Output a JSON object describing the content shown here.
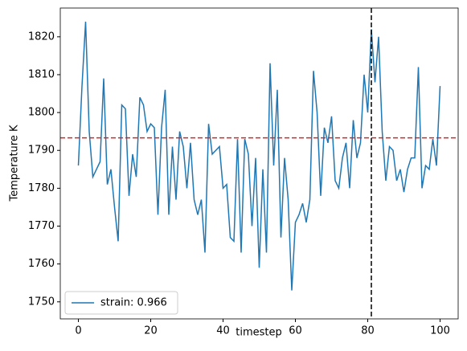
{
  "chart_data": {
    "type": "line",
    "x_label": "timestep",
    "y_label": "Temperature K",
    "x": [
      0,
      1,
      2,
      3,
      4,
      5,
      6,
      7,
      8,
      9,
      10,
      11,
      12,
      13,
      14,
      15,
      16,
      17,
      18,
      19,
      20,
      21,
      22,
      23,
      24,
      25,
      26,
      27,
      28,
      29,
      30,
      31,
      32,
      33,
      34,
      35,
      36,
      37,
      38,
      39,
      40,
      41,
      42,
      43,
      44,
      45,
      46,
      47,
      48,
      49,
      50,
      51,
      52,
      53,
      54,
      55,
      56,
      57,
      58,
      59,
      60,
      61,
      62,
      63,
      64,
      65,
      66,
      67,
      68,
      69,
      70,
      71,
      72,
      73,
      74,
      75,
      76,
      77,
      78,
      79,
      80,
      81,
      82,
      83,
      84,
      85,
      86,
      87,
      88,
      89,
      90,
      91,
      92,
      93,
      94,
      95,
      96,
      97,
      98,
      99,
      100
    ],
    "series": [
      {
        "name": "strain: 0.966",
        "color": "#1f77b4",
        "values": [
          1786,
          1807,
          1824,
          1795,
          1783,
          1785,
          1787,
          1809,
          1781,
          1785,
          1775,
          1766,
          1802,
          1801,
          1778,
          1789,
          1783,
          1804,
          1802,
          1795,
          1797,
          1796,
          1773,
          1796,
          1806,
          1773,
          1791,
          1777,
          1795,
          1791,
          1780,
          1792,
          1777,
          1773,
          1777,
          1763,
          1797,
          1789,
          1790,
          1791,
          1780,
          1781,
          1767,
          1766,
          1793,
          1763,
          1793,
          1789,
          1770,
          1788,
          1759,
          1785,
          1763,
          1813,
          1786,
          1806,
          1767,
          1788,
          1777,
          1753,
          1771,
          1773,
          1776,
          1771,
          1777,
          1811,
          1800,
          1778,
          1796,
          1792,
          1799,
          1782,
          1780,
          1788,
          1792,
          1780,
          1798,
          1788,
          1792,
          1810,
          1800,
          1822,
          1808,
          1820,
          1795,
          1782,
          1791,
          1790,
          1782,
          1785,
          1779,
          1785,
          1788,
          1788,
          1812,
          1780,
          1786,
          1785,
          1793,
          1786,
          1807
        ]
      }
    ],
    "hline": {
      "value": 1793.3,
      "color": "#d62728"
    },
    "vline": {
      "value": 81,
      "color": "#000000"
    },
    "xlim": [
      -5,
      105
    ],
    "ylim": [
      1745.5,
      1827.6
    ],
    "xticks": [
      0,
      20,
      40,
      60,
      80,
      100
    ],
    "yticks": [
      1750,
      1760,
      1770,
      1780,
      1790,
      1800,
      1810,
      1820
    ],
    "legend": "lower left"
  }
}
